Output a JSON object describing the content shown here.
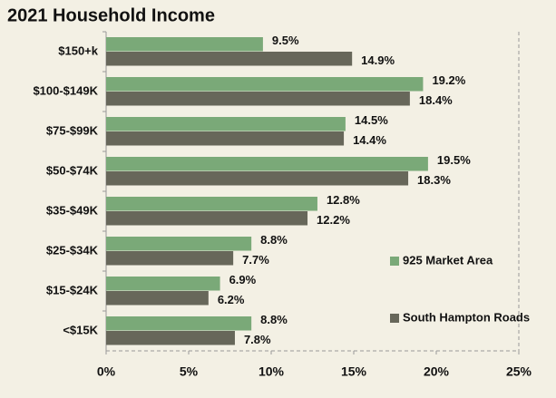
{
  "chart_data": {
    "type": "hbar",
    "title": "2021 Household Income",
    "categories": [
      "$150+k",
      "$100-$149K",
      "$75-$99K",
      "$50-$74K",
      "$35-$49K",
      "$25-$34K",
      "$15-$24K",
      "<$15K"
    ],
    "series": [
      {
        "name": "925 Market Area",
        "color": "#7aa978",
        "values": [
          9.5,
          19.2,
          14.5,
          19.5,
          12.8,
          8.8,
          6.9,
          8.8
        ],
        "value_labels": [
          "9.5%",
          "19.2%",
          "14.5%",
          "19.5%",
          "12.8%",
          "8.8%",
          "6.9%",
          "8.8%"
        ]
      },
      {
        "name": "South Hampton Roads",
        "color": "#67675a",
        "values": [
          14.9,
          18.4,
          14.4,
          18.3,
          12.2,
          7.7,
          6.2,
          7.8
        ],
        "value_labels": [
          "14.9%",
          "18.4%",
          "14.4%",
          "18.3%",
          "12.2%",
          "7.7%",
          "6.2%",
          "7.8%"
        ]
      }
    ],
    "xlim": [
      0,
      25
    ],
    "xticks": [
      {
        "value": 0,
        "label": "0%"
      },
      {
        "value": 5,
        "label": "5%"
      },
      {
        "value": 10,
        "label": "10%"
      },
      {
        "value": 15,
        "label": "15%"
      },
      {
        "value": 20,
        "label": "20%"
      },
      {
        "value": 25,
        "label": "25%"
      }
    ],
    "legend": "right"
  }
}
